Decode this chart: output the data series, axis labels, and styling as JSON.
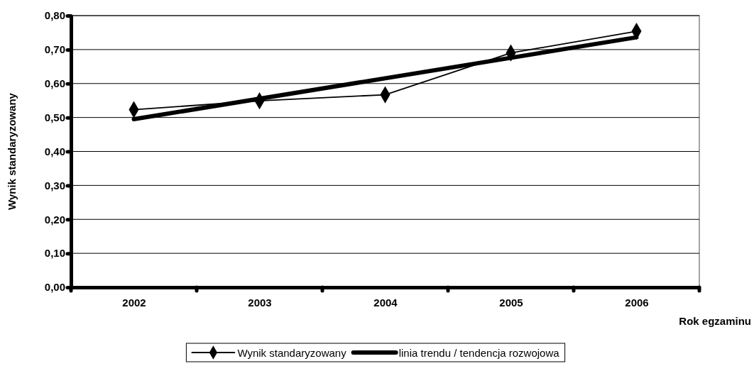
{
  "chart_data": {
    "type": "line",
    "xlabel": "Rok egzaminu",
    "ylabel": "Wynik standaryzowany",
    "categories": [
      "2002",
      "2003",
      "2004",
      "2005",
      "2006"
    ],
    "series": [
      {
        "name": "Wynik standaryzowany",
        "color": "#000000",
        "values": [
          0.523,
          0.549,
          0.567,
          0.69,
          0.754
        ],
        "marker": "diamond"
      },
      {
        "name": "linia trendu / tendencja rozwojowa",
        "color": "#000000",
        "values": [
          0.495,
          null,
          null,
          null,
          0.736
        ],
        "marker": "none"
      }
    ],
    "ylim": [
      0,
      0.8
    ],
    "yticks": [
      {
        "value": 0,
        "label": "0,00"
      },
      {
        "value": 0.1,
        "label": "0,10"
      },
      {
        "value": 0.2,
        "label": "0,20"
      },
      {
        "value": 0.3,
        "label": "0,30"
      },
      {
        "value": 0.4,
        "label": "0,40"
      },
      {
        "value": 0.5,
        "label": "0,50"
      },
      {
        "value": 0.6,
        "label": "0,60"
      },
      {
        "value": 0.7,
        "label": "0,70"
      },
      {
        "value": 0.8,
        "label": "0,80"
      }
    ],
    "grid": "y",
    "legend": "bottom"
  }
}
